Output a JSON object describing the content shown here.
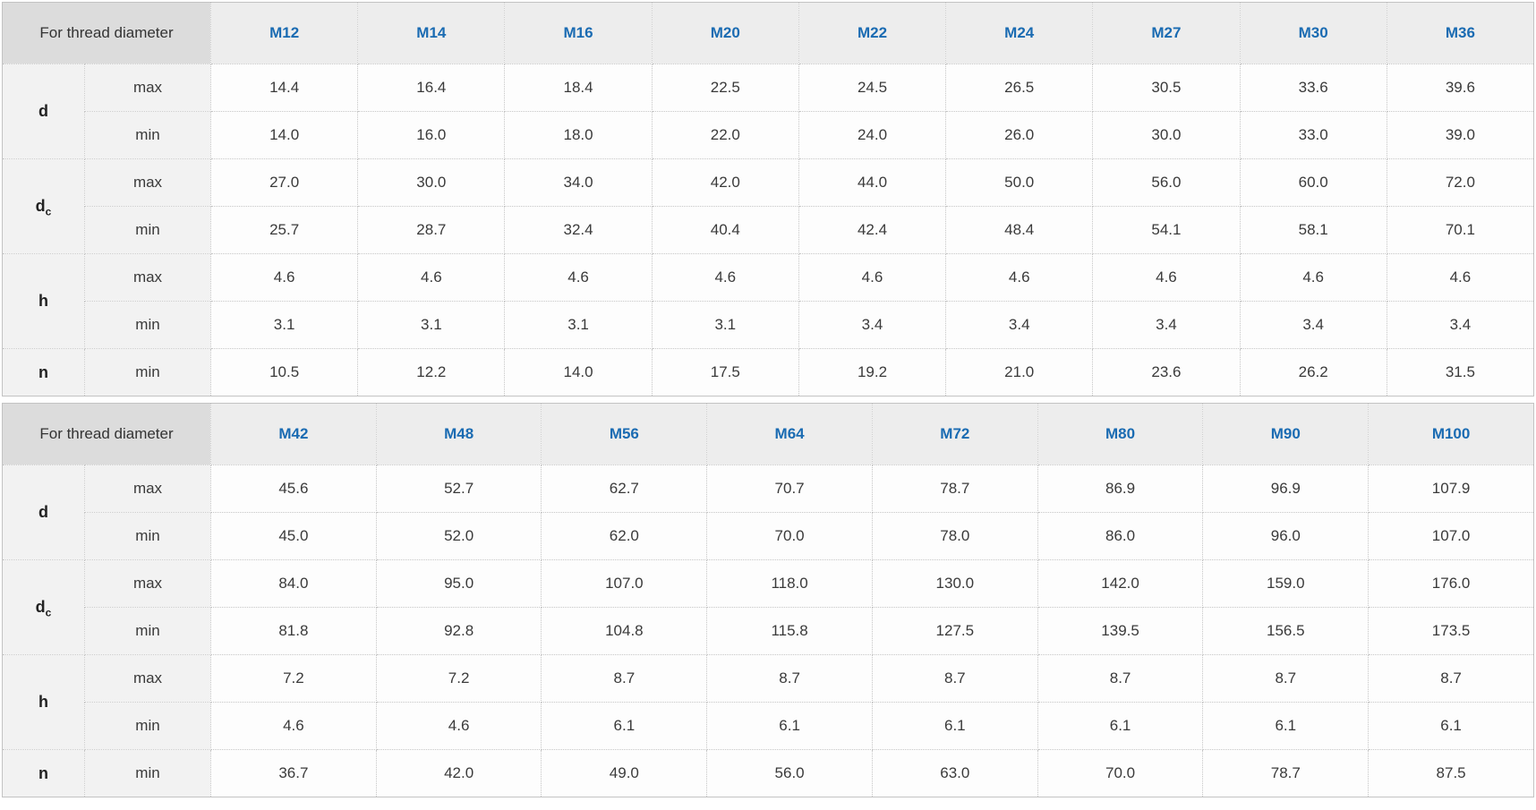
{
  "colors": {
    "accent": "#1a6bb2",
    "corner_bg": "#dcdcdc",
    "size_header_bg": "#ededed",
    "label_bg": "#f2f2f2",
    "cell_bg": "#fdfdfd"
  },
  "tables": [
    {
      "corner_label": "For thread diameter",
      "columns": [
        "M12",
        "M14",
        "M16",
        "M20",
        "M22",
        "M24",
        "M27",
        "M30",
        "M36"
      ],
      "row_groups": [
        {
          "param": "d",
          "param_sub": "",
          "limits": [
            {
              "label": "max",
              "values": [
                "14.4",
                "16.4",
                "18.4",
                "22.5",
                "24.5",
                "26.5",
                "30.5",
                "33.6",
                "39.6"
              ]
            },
            {
              "label": "min",
              "values": [
                "14.0",
                "16.0",
                "18.0",
                "22.0",
                "24.0",
                "26.0",
                "30.0",
                "33.0",
                "39.0"
              ]
            }
          ]
        },
        {
          "param": "d",
          "param_sub": "c",
          "limits": [
            {
              "label": "max",
              "values": [
                "27.0",
                "30.0",
                "34.0",
                "42.0",
                "44.0",
                "50.0",
                "56.0",
                "60.0",
                "72.0"
              ]
            },
            {
              "label": "min",
              "values": [
                "25.7",
                "28.7",
                "32.4",
                "40.4",
                "42.4",
                "48.4",
                "54.1",
                "58.1",
                "70.1"
              ]
            }
          ]
        },
        {
          "param": "h",
          "param_sub": "",
          "limits": [
            {
              "label": "max",
              "values": [
                "4.6",
                "4.6",
                "4.6",
                "4.6",
                "4.6",
                "4.6",
                "4.6",
                "4.6",
                "4.6"
              ]
            },
            {
              "label": "min",
              "values": [
                "3.1",
                "3.1",
                "3.1",
                "3.1",
                "3.4",
                "3.4",
                "3.4",
                "3.4",
                "3.4"
              ]
            }
          ]
        },
        {
          "param": "n",
          "param_sub": "",
          "limits": [
            {
              "label": "min",
              "values": [
                "10.5",
                "12.2",
                "14.0",
                "17.5",
                "19.2",
                "21.0",
                "23.6",
                "26.2",
                "31.5"
              ]
            }
          ]
        }
      ]
    },
    {
      "corner_label": "For thread diameter",
      "columns": [
        "M42",
        "M48",
        "M56",
        "M64",
        "M72",
        "M80",
        "M90",
        "M100"
      ],
      "row_groups": [
        {
          "param": "d",
          "param_sub": "",
          "limits": [
            {
              "label": "max",
              "values": [
                "45.6",
                "52.7",
                "62.7",
                "70.7",
                "78.7",
                "86.9",
                "96.9",
                "107.9"
              ]
            },
            {
              "label": "min",
              "values": [
                "45.0",
                "52.0",
                "62.0",
                "70.0",
                "78.0",
                "86.0",
                "96.0",
                "107.0"
              ]
            }
          ]
        },
        {
          "param": "d",
          "param_sub": "c",
          "limits": [
            {
              "label": "max",
              "values": [
                "84.0",
                "95.0",
                "107.0",
                "118.0",
                "130.0",
                "142.0",
                "159.0",
                "176.0"
              ]
            },
            {
              "label": "min",
              "values": [
                "81.8",
                "92.8",
                "104.8",
                "115.8",
                "127.5",
                "139.5",
                "156.5",
                "173.5"
              ]
            }
          ]
        },
        {
          "param": "h",
          "param_sub": "",
          "limits": [
            {
              "label": "max",
              "values": [
                "7.2",
                "7.2",
                "8.7",
                "8.7",
                "8.7",
                "8.7",
                "8.7",
                "8.7"
              ]
            },
            {
              "label": "min",
              "values": [
                "4.6",
                "4.6",
                "6.1",
                "6.1",
                "6.1",
                "6.1",
                "6.1",
                "6.1"
              ]
            }
          ]
        },
        {
          "param": "n",
          "param_sub": "",
          "limits": [
            {
              "label": "min",
              "values": [
                "36.7",
                "42.0",
                "49.0",
                "56.0",
                "63.0",
                "70.0",
                "78.7",
                "87.5"
              ]
            }
          ]
        }
      ]
    }
  ]
}
